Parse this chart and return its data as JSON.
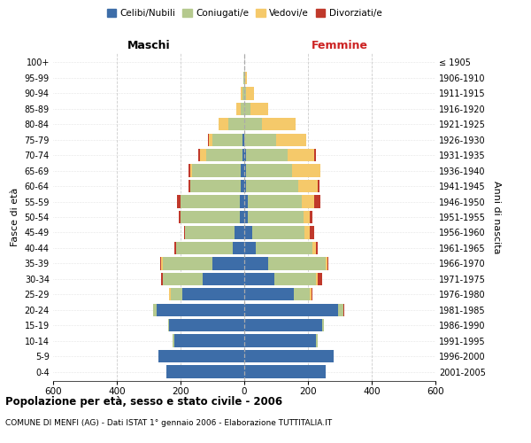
{
  "age_groups": [
    "0-4",
    "5-9",
    "10-14",
    "15-19",
    "20-24",
    "25-29",
    "30-34",
    "35-39",
    "40-44",
    "45-49",
    "50-54",
    "55-59",
    "60-64",
    "65-69",
    "70-74",
    "75-79",
    "80-84",
    "85-89",
    "90-94",
    "95-99",
    "100+"
  ],
  "birth_years": [
    "2001-2005",
    "1996-2000",
    "1991-1995",
    "1986-1990",
    "1981-1985",
    "1976-1980",
    "1971-1975",
    "1966-1970",
    "1961-1965",
    "1956-1960",
    "1951-1955",
    "1946-1950",
    "1941-1945",
    "1936-1940",
    "1931-1935",
    "1926-1930",
    "1921-1925",
    "1916-1920",
    "1911-1915",
    "1906-1910",
    "≤ 1905"
  ],
  "maschi": {
    "celibi": [
      245,
      270,
      220,
      235,
      275,
      195,
      130,
      100,
      35,
      30,
      15,
      15,
      10,
      10,
      5,
      5,
      0,
      0,
      0,
      0,
      0
    ],
    "coniugati": [
      0,
      0,
      5,
      5,
      10,
      35,
      125,
      155,
      180,
      155,
      185,
      185,
      160,
      155,
      115,
      95,
      50,
      10,
      5,
      2,
      0
    ],
    "vedovi": [
      0,
      0,
      0,
      0,
      0,
      5,
      0,
      5,
      0,
      0,
      0,
      0,
      0,
      5,
      20,
      10,
      30,
      15,
      5,
      2,
      0
    ],
    "divorziati": [
      0,
      0,
      0,
      0,
      0,
      0,
      5,
      5,
      5,
      5,
      5,
      10,
      5,
      5,
      5,
      5,
      0,
      0,
      0,
      0,
      0
    ]
  },
  "femmine": {
    "nubili": [
      255,
      280,
      225,
      245,
      295,
      155,
      95,
      75,
      35,
      25,
      10,
      10,
      5,
      5,
      5,
      0,
      0,
      0,
      0,
      0,
      0
    ],
    "coniugate": [
      0,
      0,
      5,
      5,
      15,
      50,
      130,
      180,
      180,
      165,
      175,
      170,
      165,
      145,
      130,
      100,
      55,
      20,
      5,
      2,
      0
    ],
    "vedove": [
      0,
      0,
      0,
      0,
      0,
      5,
      5,
      5,
      10,
      15,
      20,
      40,
      60,
      90,
      85,
      95,
      105,
      55,
      25,
      5,
      0
    ],
    "divorziate": [
      0,
      0,
      0,
      0,
      5,
      5,
      15,
      5,
      5,
      15,
      10,
      20,
      5,
      0,
      5,
      0,
      0,
      0,
      0,
      0,
      0
    ]
  },
  "colors": {
    "celibi": "#3d6da8",
    "coniugati": "#b5c98e",
    "vedovi": "#f5c96a",
    "divorziati": "#c0392b"
  },
  "legend_labels": [
    "Celibi/Nubili",
    "Coniugati/e",
    "Vedovi/e",
    "Divorziati/e"
  ],
  "title_main": "Popolazione per età, sesso e stato civile - 2006",
  "title_sub": "COMUNE DI MENFI (AG) - Dati ISTAT 1° gennaio 2006 - Elaborazione TUTTITALIA.IT",
  "xlabel_left": "Maschi",
  "xlabel_right": "Femmine",
  "ylabel_left": "Fasce di età",
  "ylabel_right": "Anni di nascita",
  "xlim": 600,
  "bg_color": "#ffffff",
  "grid_color": "#cccccc"
}
